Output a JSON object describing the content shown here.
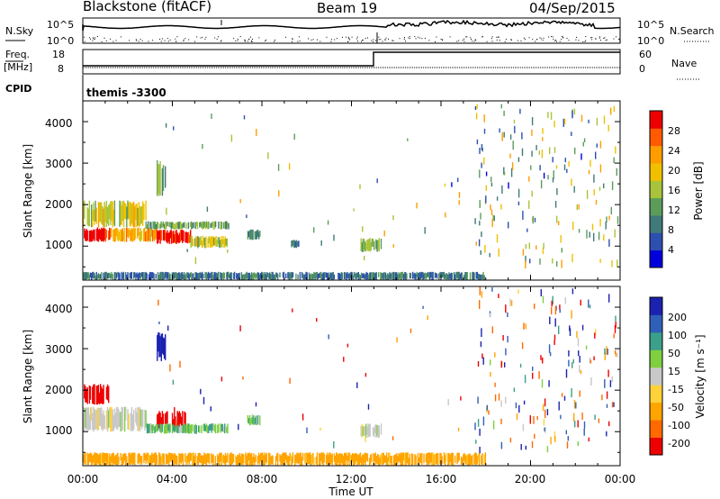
{
  "header": {
    "station": "Blackstone (fitACF)",
    "beam": "Beam 19",
    "date": "04/Sep/2015"
  },
  "noise_panel": {
    "left_label": "N.Sky",
    "right_label": "N.Search",
    "left_ticks": [
      "10^5",
      "10^0"
    ],
    "right_ticks": [
      "10^5",
      "10^0"
    ]
  },
  "freq_panel": {
    "left_label_1": "Freq.",
    "left_label_2": "[MHz]",
    "right_label": "Nave",
    "left_ticks": [
      "18",
      "8"
    ],
    "right_ticks": [
      "60",
      "0"
    ]
  },
  "cpid_panel": {
    "label": "CPID",
    "value": "themis -3300"
  },
  "x_axis": {
    "label": "Time UT",
    "ticks": [
      "00:00",
      "04:00",
      "08:00",
      "12:00",
      "16:00",
      "20:00",
      "00:00"
    ]
  },
  "power_panel": {
    "ylabel": "Slant Range [km]",
    "yticks": [
      "4000",
      "3000",
      "2000",
      "1000"
    ],
    "colorbar_label": "Power [dB]",
    "colorbar_ticks": [
      "28",
      "24",
      "20",
      "16",
      "12",
      "8",
      "4"
    ],
    "colors": [
      "#0000dd",
      "#2c4fb0",
      "#3f7a78",
      "#5b9c5b",
      "#a8c43a",
      "#f0c000",
      "#ff9c00",
      "#ff5a00",
      "#ee0000"
    ]
  },
  "velocity_panel": {
    "ylabel": "Slant Range [km]",
    "yticks": [
      "4000",
      "3000",
      "2000",
      "1000"
    ],
    "colorbar_label": "Velocity [m s⁻¹]",
    "colorbar_ticks": [
      "200",
      "100",
      "50",
      "15",
      "-15",
      "-50",
      "-100",
      "-200"
    ],
    "colors": [
      "#1b22b0",
      "#2f5fb8",
      "#3aa08a",
      "#7fcf3f",
      "#c8c8c8",
      "#ffd23a",
      "#ffa400",
      "#ff6a00",
      "#ee0000"
    ]
  },
  "chart_data": {
    "type": "heatmap",
    "x_range_hours": [
      0,
      24
    ],
    "y_range_km": [
      180,
      4500
    ],
    "power_regions_dB": [
      {
        "t": [
          0.0,
          1.2
        ],
        "r": [
          1100,
          1450
        ],
        "v": 28
      },
      {
        "t": [
          0.0,
          2.8
        ],
        "r": [
          1450,
          2100
        ],
        "v": 16
      },
      {
        "t": [
          1.2,
          3.3
        ],
        "r": [
          1100,
          1450
        ],
        "v": 20
      },
      {
        "t": [
          3.3,
          4.8
        ],
        "r": [
          1050,
          1400
        ],
        "v": 28
      },
      {
        "t": [
          2.8,
          6.5
        ],
        "r": [
          1400,
          1600
        ],
        "v": 12
      },
      {
        "t": [
          4.8,
          6.5
        ],
        "r": [
          950,
          1250
        ],
        "v": 16
      },
      {
        "t": [
          3.3,
          3.7
        ],
        "r": [
          2200,
          3100
        ],
        "v": 12
      },
      {
        "t": [
          7.3,
          7.9
        ],
        "r": [
          1150,
          1400
        ],
        "v": 8
      },
      {
        "t": [
          9.3,
          9.7
        ],
        "r": [
          950,
          1150
        ],
        "v": 8
      },
      {
        "t": [
          12.4,
          13.3
        ],
        "r": [
          850,
          1200
        ],
        "v": 12
      },
      {
        "t": [
          0.0,
          18.0
        ],
        "r": [
          180,
          380
        ],
        "v": 8
      }
    ],
    "velocity_regions_m_s": [
      {
        "t": [
          0.0,
          1.2
        ],
        "r": [
          1650,
          2150
        ],
        "v": -200
      },
      {
        "t": [
          0.0,
          2.8
        ],
        "r": [
          1000,
          1600
        ],
        "v": 0
      },
      {
        "t": [
          3.3,
          4.6
        ],
        "r": [
          1050,
          1500
        ],
        "v": -200
      },
      {
        "t": [
          3.3,
          3.7
        ],
        "r": [
          2700,
          3400
        ],
        "v": 200
      },
      {
        "t": [
          2.8,
          6.5
        ],
        "r": [
          950,
          1200
        ],
        "v": 30
      },
      {
        "t": [
          0.0,
          18.0
        ],
        "r": [
          180,
          500
        ],
        "v": -50
      },
      {
        "t": [
          7.3,
          7.9
        ],
        "r": [
          1150,
          1400
        ],
        "v": 30
      },
      {
        "t": [
          12.4,
          13.3
        ],
        "r": [
          850,
          1200
        ],
        "v": 0
      }
    ]
  }
}
